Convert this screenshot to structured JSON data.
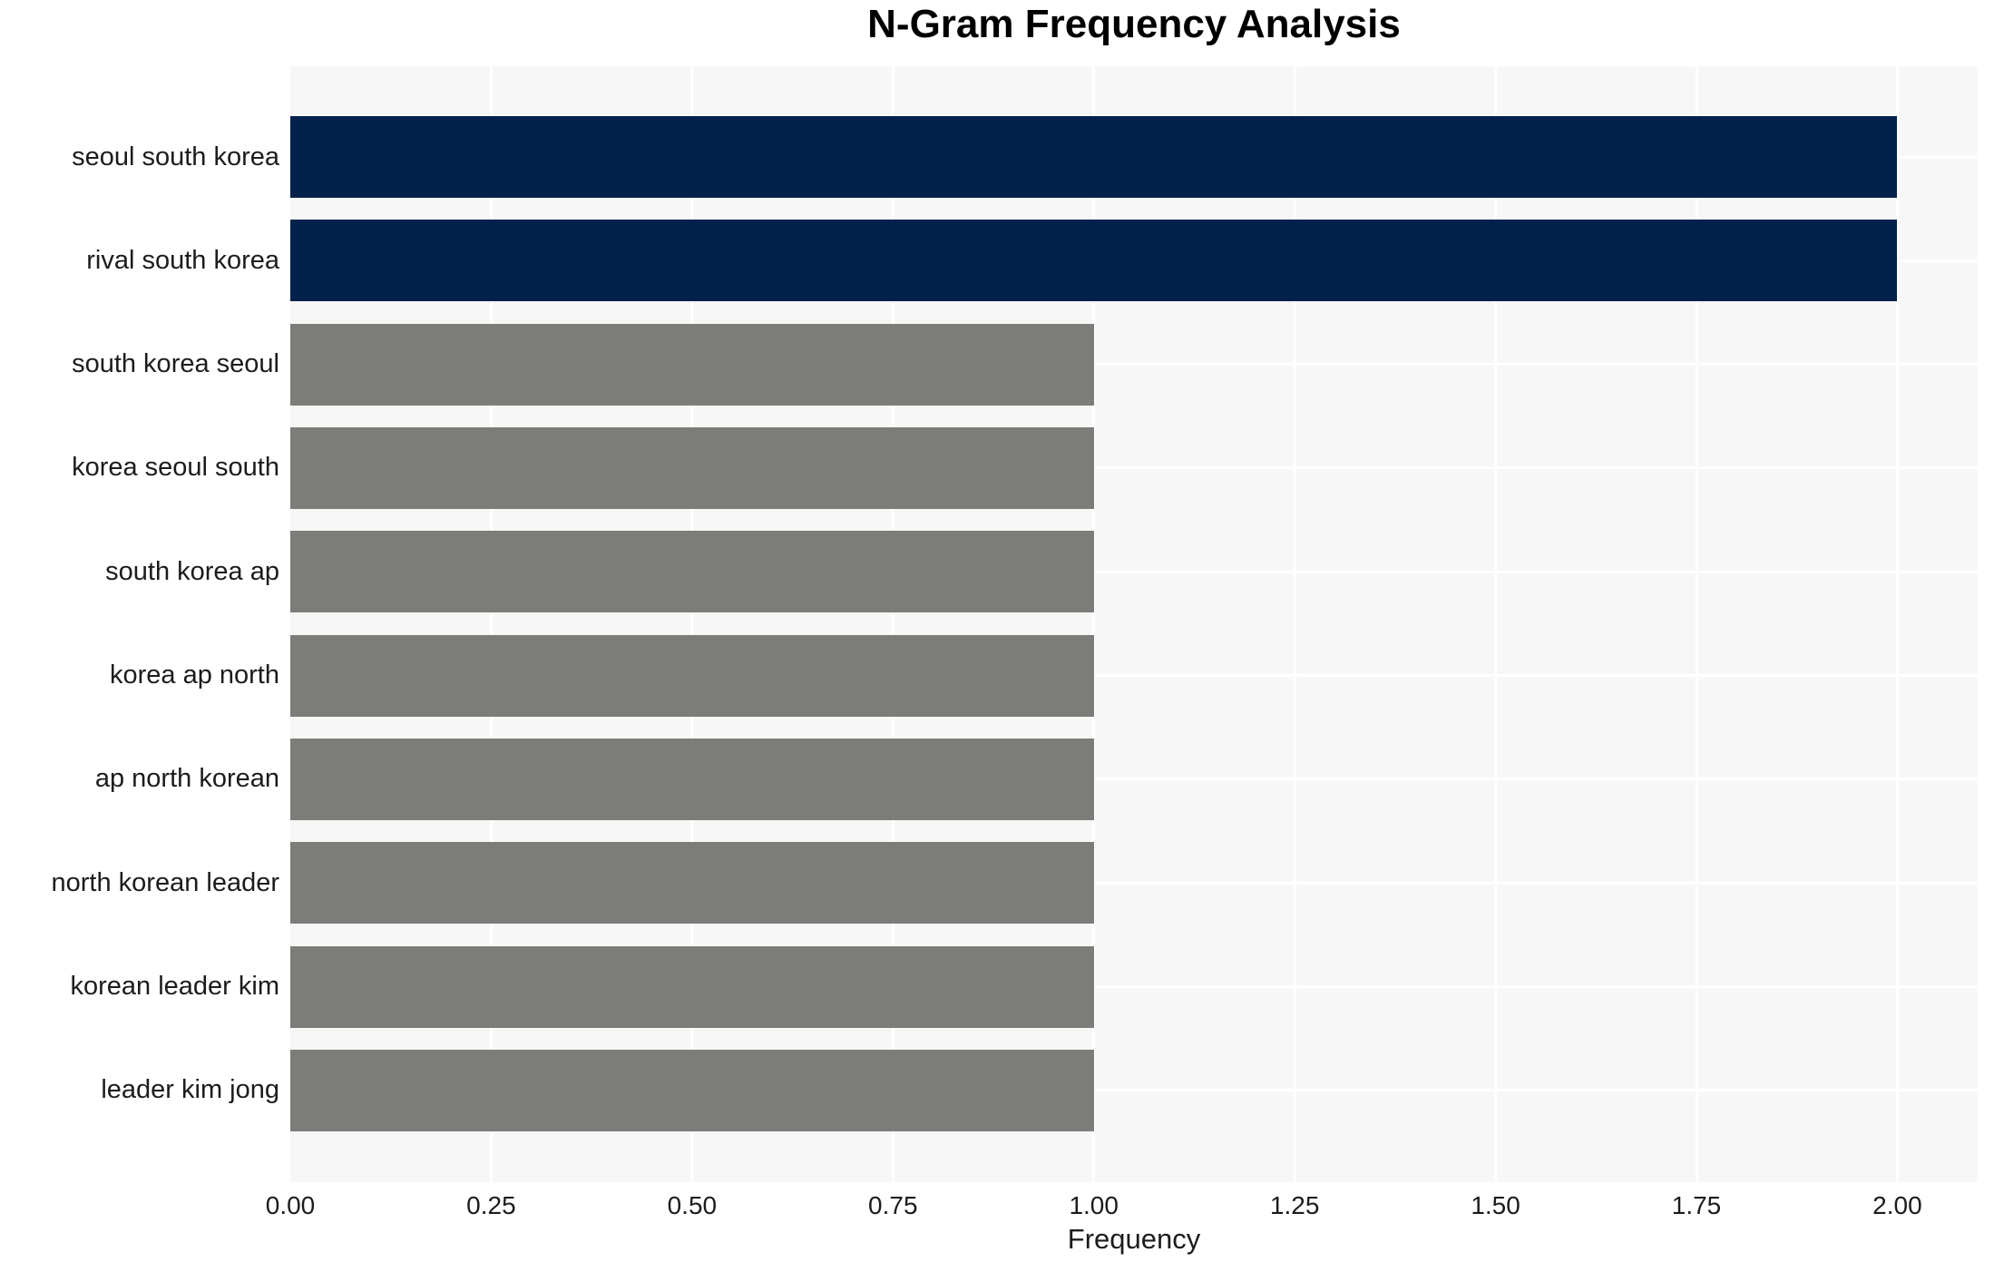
{
  "chart_data": {
    "type": "bar",
    "orientation": "horizontal",
    "title": "N-Gram Frequency Analysis",
    "xlabel": "Frequency",
    "ylabel": "",
    "categories": [
      "seoul south korea",
      "rival south korea",
      "south korea seoul",
      "korea seoul south",
      "south korea ap",
      "korea ap north",
      "ap north korean",
      "north korean leader",
      "korean leader kim",
      "leader kim jong"
    ],
    "values": [
      2,
      2,
      1,
      1,
      1,
      1,
      1,
      1,
      1,
      1
    ],
    "xlim": [
      0,
      2.1
    ],
    "xticks": [
      0,
      0.25,
      0.5,
      0.75,
      1.0,
      1.25,
      1.5,
      1.75,
      2.0
    ],
    "xtick_labels": [
      "0.00",
      "0.25",
      "0.50",
      "0.75",
      "1.00",
      "1.25",
      "1.50",
      "1.75",
      "2.00"
    ],
    "grid": "on",
    "legend": "none",
    "colors": {
      "highlight_bar": "#02224c",
      "default_bar": "#7c7c79",
      "bar_colors": [
        "#02224c",
        "#02224c",
        "#7c7c79",
        "#7c7c79",
        "#7c7c79",
        "#7c7c79",
        "#7c7c79",
        "#7c7c79",
        "#7c7c79",
        "#7c7c79"
      ],
      "plot_background": "#f7f7f7",
      "figure_background": "#ffffff",
      "gridline": "#ffffff",
      "text": "#1c1c1c"
    }
  }
}
